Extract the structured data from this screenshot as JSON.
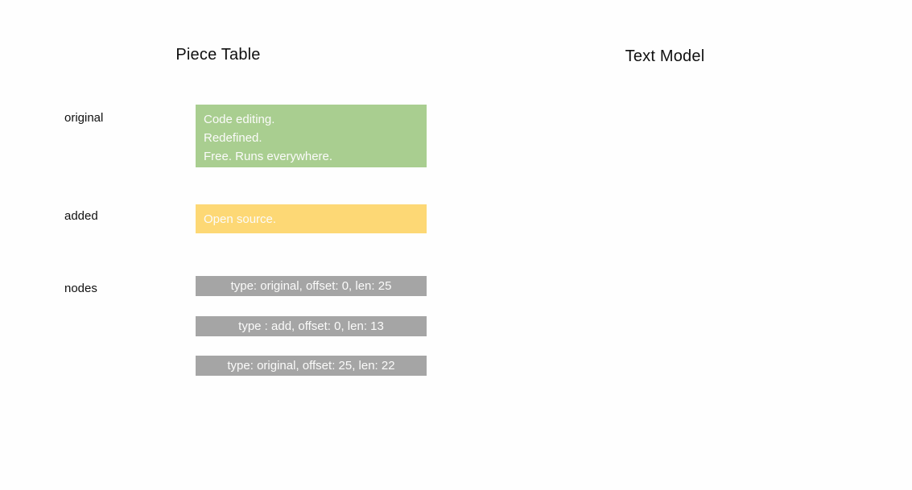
{
  "titles": {
    "left": "Piece Table",
    "right": "Text Model"
  },
  "colors": {
    "background": "#fefefe",
    "original_buffer": "#a9ce90",
    "added_buffer": "#fdd875",
    "node_box": "#a5a5a5",
    "box_text": "#fbfbfa",
    "label_text": "#101010"
  },
  "piece_table": {
    "original": {
      "label": "original",
      "lines": [
        "Code editing.",
        "Redefined.",
        "Free. Runs everywhere."
      ]
    },
    "added": {
      "label": "added",
      "lines": [
        "Open source."
      ]
    },
    "nodes": {
      "label": "nodes",
      "items": [
        "type: original, offset: 0, len: 25",
        "type : add, offset: 0, len: 13",
        "type: original, offset: 25, len: 22"
      ]
    }
  }
}
